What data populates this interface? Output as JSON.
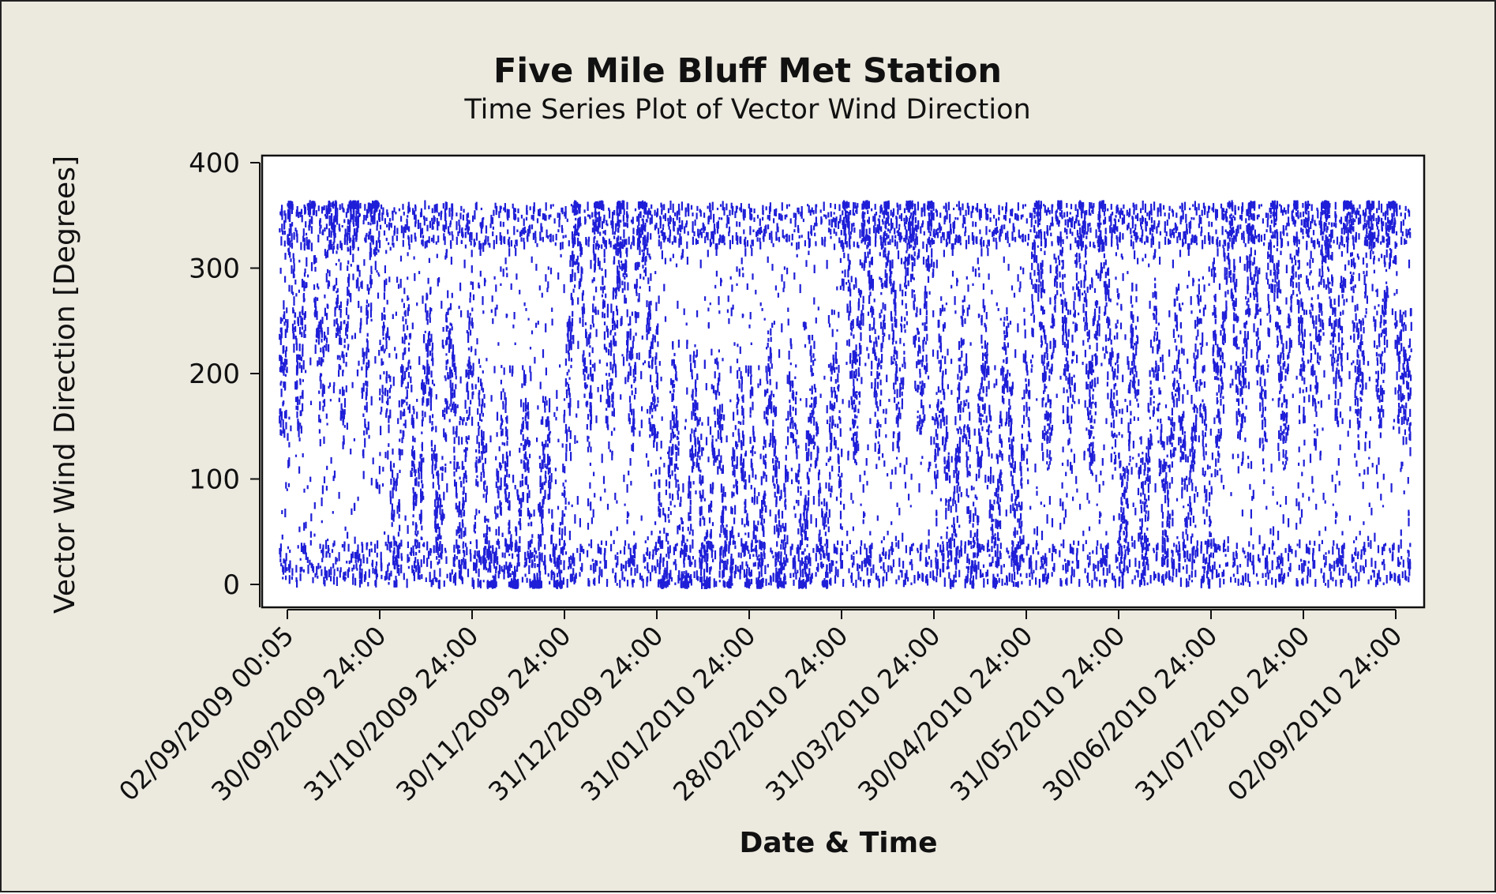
{
  "chart_data": {
    "type": "scatter",
    "title": "Five Mile Bluff Met Station",
    "subtitle": "Time Series Plot of Vector Wind Direction",
    "xlabel": "Date & Time",
    "ylabel": "Vector Wind Direction [Degrees]",
    "ylim": [
      0,
      400
    ],
    "y_ticks": [
      0,
      100,
      200,
      300,
      400
    ],
    "x_tick_labels": [
      "02/09/2009 00:05",
      "30/09/2009 24:00",
      "31/10/2009 24:00",
      "30/11/2009 24:00",
      "31/12/2009 24:00",
      "31/01/2010 24:00",
      "28/02/2010 24:00",
      "31/03/2010 24:00",
      "30/04/2010 24:00",
      "31/05/2010 24:00",
      "30/06/2010 24:00",
      "31/07/2010 24:00",
      "02/09/2010 24:00"
    ],
    "series": [
      {
        "color": "#1f1fd8",
        "marker": "dot",
        "y_range": [
          0,
          360
        ],
        "dense_direction_bands": [
          {
            "from": "02/09/2009 00:05",
            "to": "30/09/2009 24:00",
            "y": 280
          },
          {
            "from": "30/09/2009 24:00",
            "to": "31/10/2009 24:00",
            "y": 140
          },
          {
            "from": "31/10/2009 24:00",
            "to": "30/11/2009 24:00",
            "y": 60
          },
          {
            "from": "30/11/2009 24:00",
            "to": "31/12/2009 24:00",
            "y": 270
          },
          {
            "from": "31/12/2009 24:00",
            "to": "31/01/2010 24:00",
            "y": 80
          },
          {
            "from": "31/01/2010 24:00",
            "to": "28/02/2010 24:00",
            "y": 100
          },
          {
            "from": "28/02/2010 24:00",
            "to": "31/03/2010 24:00",
            "y": 260
          },
          {
            "from": "31/03/2010 24:00",
            "to": "30/04/2010 24:00",
            "y": 120
          },
          {
            "from": "30/04/2010 24:00",
            "to": "31/05/2010 24:00",
            "y": 250
          },
          {
            "from": "31/05/2010 24:00",
            "to": "30/06/2010 24:00",
            "y": 140
          },
          {
            "from": "30/06/2010 24:00",
            "to": "31/07/2010 24:00",
            "y": 250
          },
          {
            "from": "31/07/2010 24:00",
            "to": "02/09/2010 24:00",
            "y": 280
          }
        ]
      }
    ],
    "grid": false,
    "legend": "none"
  },
  "colors": {
    "background": "#ece9df",
    "plot_area": "#ffffff",
    "series": "#1f1fd8",
    "axis": "#111111"
  }
}
